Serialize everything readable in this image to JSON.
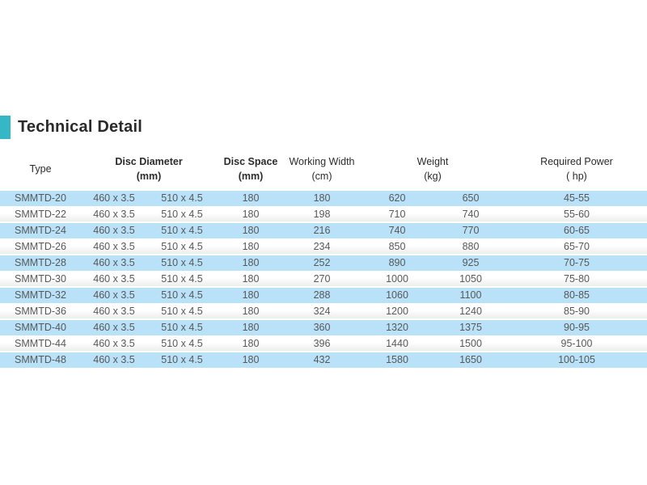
{
  "title": "Technical Detail",
  "colors": {
    "accent": "#35b7c6",
    "row_highlight": "#b9e2f8",
    "body_text": "#57585a",
    "header_text": "#2b2b2b"
  },
  "table": {
    "headers": [
      {
        "label": "Type",
        "unit": "",
        "span": 1,
        "bold": false
      },
      {
        "label": "Disc Diameter",
        "unit": "(mm)",
        "span": 2,
        "bold": true
      },
      {
        "label": "Disc Space",
        "unit": "(mm)",
        "span": 1,
        "bold": true
      },
      {
        "label": "Working Width",
        "unit": "(cm)",
        "span": 1,
        "bold": false
      },
      {
        "label": "Weight",
        "unit": "(kg)",
        "span": 2,
        "bold": false
      },
      {
        "label": "Required Power",
        "unit": "( hp)",
        "span": 1,
        "bold": false
      }
    ],
    "rows": [
      [
        "SMMTD-20",
        "460 x 3.5",
        "510 x 4.5",
        "180",
        "180",
        "620",
        "650",
        "45-55"
      ],
      [
        "SMMTD-22",
        "460 x 3.5",
        "510 x 4.5",
        "180",
        "198",
        "710",
        "740",
        "55-60"
      ],
      [
        "SMMTD-24",
        "460 x 3.5",
        "510 x 4.5",
        "180",
        "216",
        "740",
        "770",
        "60-65"
      ],
      [
        "SMMTD-26",
        "460 x 3.5",
        "510 x 4.5",
        "180",
        "234",
        "850",
        "880",
        "65-70"
      ],
      [
        "SMMTD-28",
        "460 x 3.5",
        "510 x 4.5",
        "180",
        "252",
        "890",
        "925",
        "70-75"
      ],
      [
        "SMMTD-30",
        "460 x 3.5",
        "510 x 4.5",
        "180",
        "270",
        "1000",
        "1050",
        "75-80"
      ],
      [
        "SMMTD-32",
        "460 x 3.5",
        "510 x 4.5",
        "180",
        "288",
        "1060",
        "1100",
        "80-85"
      ],
      [
        "SMMTD-36",
        "460 x 3.5",
        "510 x 4.5",
        "180",
        "324",
        "1200",
        "1240",
        "85-90"
      ],
      [
        "SMMTD-40",
        "460 x 3.5",
        "510 x 4.5",
        "180",
        "360",
        "1320",
        "1375",
        "90-95"
      ],
      [
        "SMMTD-44",
        "460 x 3.5",
        "510 x 4.5",
        "180",
        "396",
        "1440",
        "1500",
        "95-100"
      ],
      [
        "SMMTD-48",
        "460 x 3.5",
        "510 x 4.5",
        "180",
        "432",
        "1580",
        "1650",
        "100-105"
      ]
    ]
  }
}
